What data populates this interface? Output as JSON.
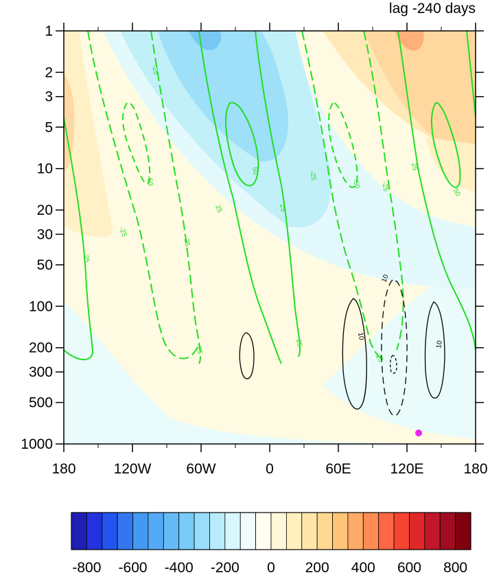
{
  "chart_data": {
    "type": "contour",
    "title": "lag -240 days",
    "xlabel": "",
    "ylabel": "",
    "xlim": [
      -180,
      180
    ],
    "ylim": [
      1000,
      1
    ],
    "y_scale": "log",
    "x_ticks": [
      {
        "value": -180,
        "label": "180"
      },
      {
        "value": -120,
        "label": "120W"
      },
      {
        "value": -60,
        "label": "60W"
      },
      {
        "value": 0,
        "label": "0"
      },
      {
        "value": 60,
        "label": "60E"
      },
      {
        "value": 120,
        "label": "120E"
      },
      {
        "value": 180,
        "label": "180"
      }
    ],
    "y_ticks": [
      {
        "value": 1,
        "label": "1"
      },
      {
        "value": 2,
        "label": "2"
      },
      {
        "value": 3,
        "label": "3"
      },
      {
        "value": 5,
        "label": "5"
      },
      {
        "value": 10,
        "label": "10"
      },
      {
        "value": 20,
        "label": "20"
      },
      {
        "value": 30,
        "label": "30"
      },
      {
        "value": 50,
        "label": "50"
      },
      {
        "value": 100,
        "label": "100"
      },
      {
        "value": 200,
        "label": "200"
      },
      {
        "value": 300,
        "label": "300"
      },
      {
        "value": 500,
        "label": "500"
      },
      {
        "value": 1000,
        "label": "1000"
      }
    ],
    "colorbar": {
      "min": -800,
      "max": 800,
      "step": 80,
      "labels": [
        "-800",
        "-600",
        "-400",
        "-200",
        "0",
        "200",
        "400",
        "600",
        "800"
      ],
      "colors": [
        "#1f1fb4",
        "#2233dd",
        "#2255ee",
        "#3377f0",
        "#4499f2",
        "#55aaf5",
        "#66bbf7",
        "#77ccf8",
        "#99ddfa",
        "#b8ecfb",
        "#d8f6fc",
        "#f0fcfd",
        "#fffef0",
        "#fff8d8",
        "#fff0c0",
        "#ffe6a8",
        "#ffd890",
        "#ffc478",
        "#ffaa66",
        "#ff8c55",
        "#ff6644",
        "#f64433",
        "#e02828",
        "#c01828",
        "#a00c20",
        "#800010"
      ]
    },
    "shading_note": "positive (warm) anomalies in upper levels east of 60E and near 180W; negative (blue) anomalies aloft 120W–90E with max near 60W at 1 hPa",
    "green_contours": {
      "color": "#22dd22",
      "levels": [
        -50,
        -25,
        25,
        50
      ],
      "labels": [
        "25",
        "-25",
        "-50",
        "50"
      ]
    },
    "black_contours": {
      "color": "#000000",
      "levels": [
        -10,
        10
      ],
      "labels": [
        "10",
        "10",
        "10"
      ]
    },
    "marker": {
      "lon": 130,
      "pressure": 850,
      "color": "#ee22ee"
    }
  }
}
